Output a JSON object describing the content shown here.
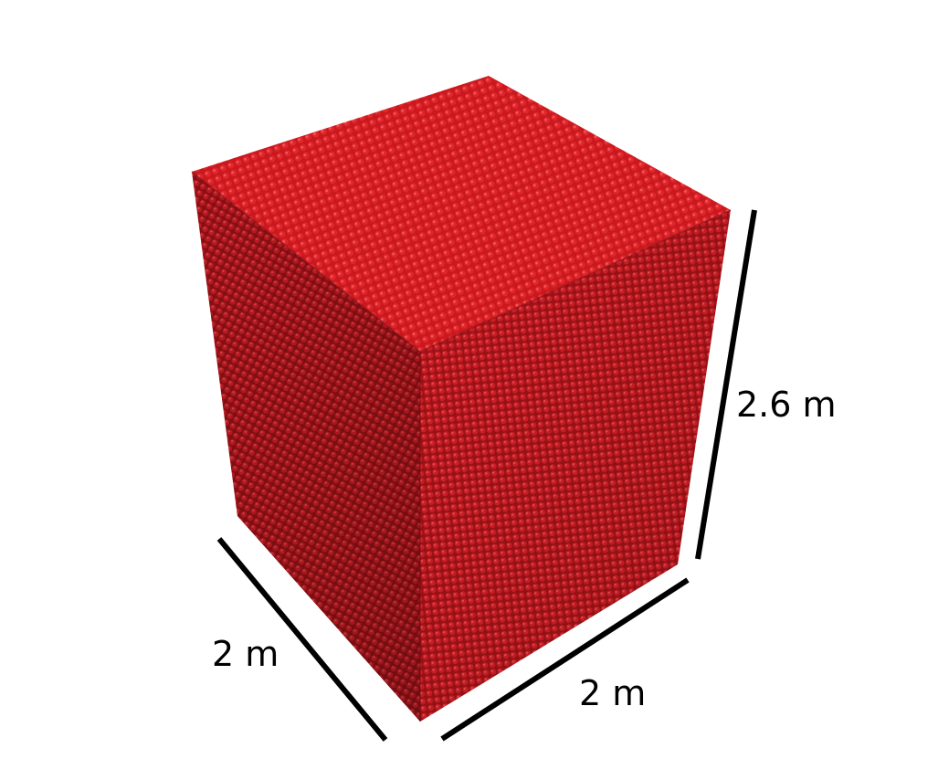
{
  "dimensions": {
    "height": "2.6 m",
    "depth": "2 m",
    "width": "2 m"
  },
  "colors": {
    "particle": "#d11f24",
    "particle_dark": "#6e0c10",
    "face_top": "#c9191e",
    "face_left": "#a8131a",
    "face_right": "#b8171d",
    "dimension_line": "#000000"
  }
}
